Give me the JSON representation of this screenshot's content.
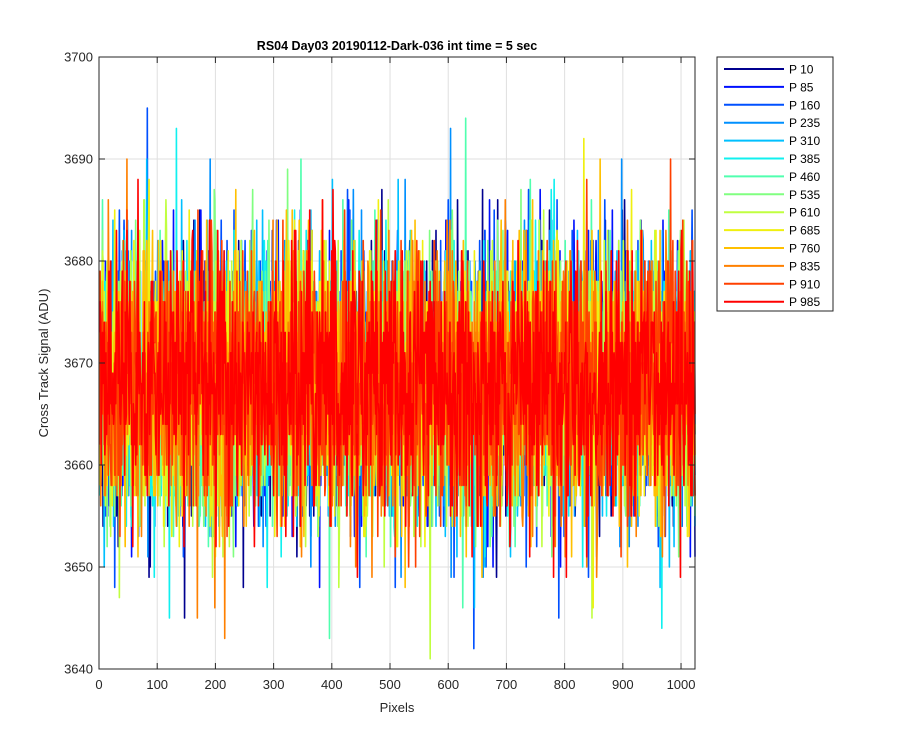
{
  "chart_data": {
    "type": "line",
    "title": "RS04 Day03 20190112-Dark-036 int time = 5 sec",
    "xlabel": "Pixels",
    "ylabel": "Cross Track Signal (ADU)",
    "xlim": [
      0,
      1024
    ],
    "ylim": [
      3640,
      3700
    ],
    "xticks": [
      0,
      100,
      200,
      300,
      400,
      500,
      600,
      700,
      800,
      900,
      1000
    ],
    "yticks": [
      3640,
      3650,
      3660,
      3670,
      3680,
      3690,
      3700
    ],
    "grid": true,
    "legend_position": "outside-right",
    "noise_model": {
      "n_points": 1024,
      "mean": 3668,
      "std": 6.5,
      "min_observed": 3641,
      "max_observed": 3695
    },
    "series": [
      {
        "name": "P 10",
        "color": "#00008f"
      },
      {
        "name": "P 85",
        "color": "#0010ff"
      },
      {
        "name": "P 160",
        "color": "#0050ff"
      },
      {
        "name": "P 235",
        "color": "#0090ff"
      },
      {
        "name": "P 310",
        "color": "#00c0ff"
      },
      {
        "name": "P 385",
        "color": "#10f0ef"
      },
      {
        "name": "P 460",
        "color": "#50ffaf"
      },
      {
        "name": "P 535",
        "color": "#80ff80"
      },
      {
        "name": "P 610",
        "color": "#c0ff40"
      },
      {
        "name": "P 685",
        "color": "#f0f010"
      },
      {
        "name": "P 760",
        "color": "#ffc000"
      },
      {
        "name": "P 835",
        "color": "#ff8000"
      },
      {
        "name": "P 910",
        "color": "#ff4000"
      },
      {
        "name": "P 985",
        "color": "#ff0000"
      }
    ]
  }
}
